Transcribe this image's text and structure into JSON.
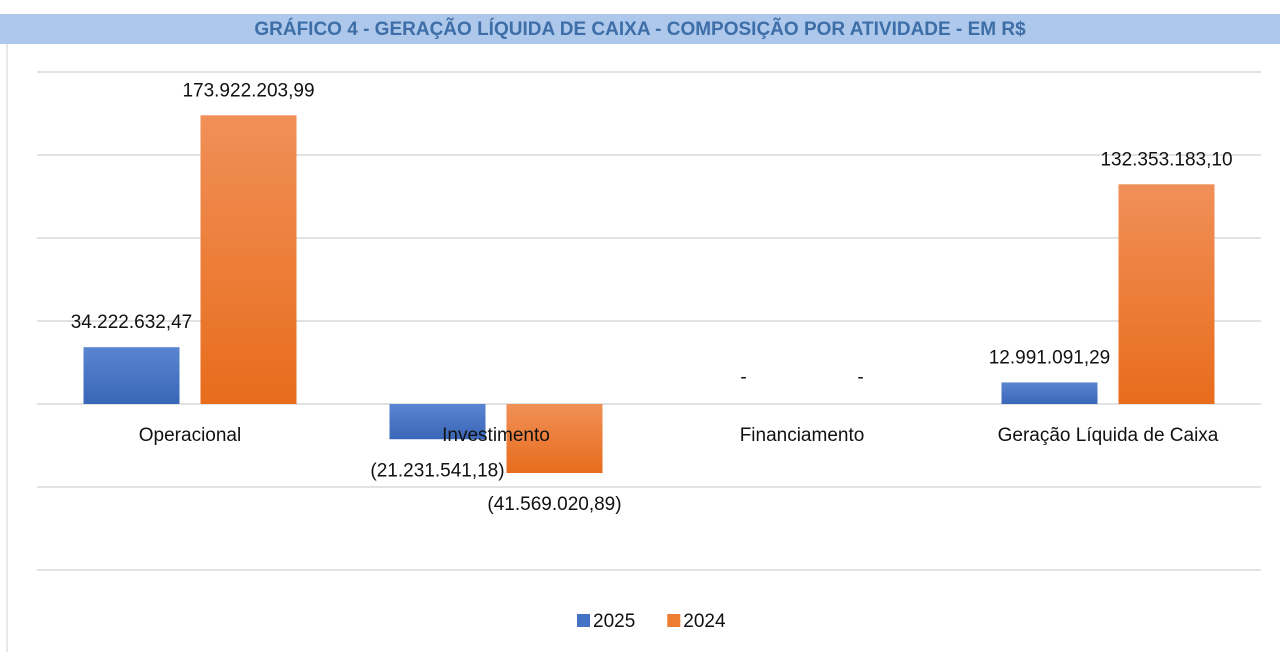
{
  "chart_data": {
    "type": "bar",
    "title": "GRÁFICO 4 - GERAÇÃO LÍQUIDA DE CAIXA - COMPOSIÇÃO POR ATIVIDADE - EM R$",
    "categories": [
      "Operacional",
      "Investimento",
      "Financiamento",
      "Geração Líquida de Caixa"
    ],
    "series": [
      {
        "name": "2025",
        "color": "#4472c4",
        "values": [
          34222632.47,
          -21231541.18,
          0,
          12991091.29
        ],
        "value_labels": [
          "34.222.632,47",
          "(21.231.541,18)",
          "-",
          "12.991.091,29"
        ]
      },
      {
        "name": "2024",
        "color": "#ed7d31",
        "values": [
          173922203.99,
          -41569020.89,
          0,
          132353183.1
        ],
        "value_labels": [
          "173.922.203,99",
          "(41.569.020,89)",
          "-",
          "132.353.183,10"
        ]
      }
    ],
    "ylim": [
      -100000000,
      200000000
    ],
    "yticks": [
      -100000000,
      -50000000,
      0,
      50000000,
      100000000,
      150000000,
      200000000
    ],
    "grid": true,
    "legend": "bottom"
  }
}
